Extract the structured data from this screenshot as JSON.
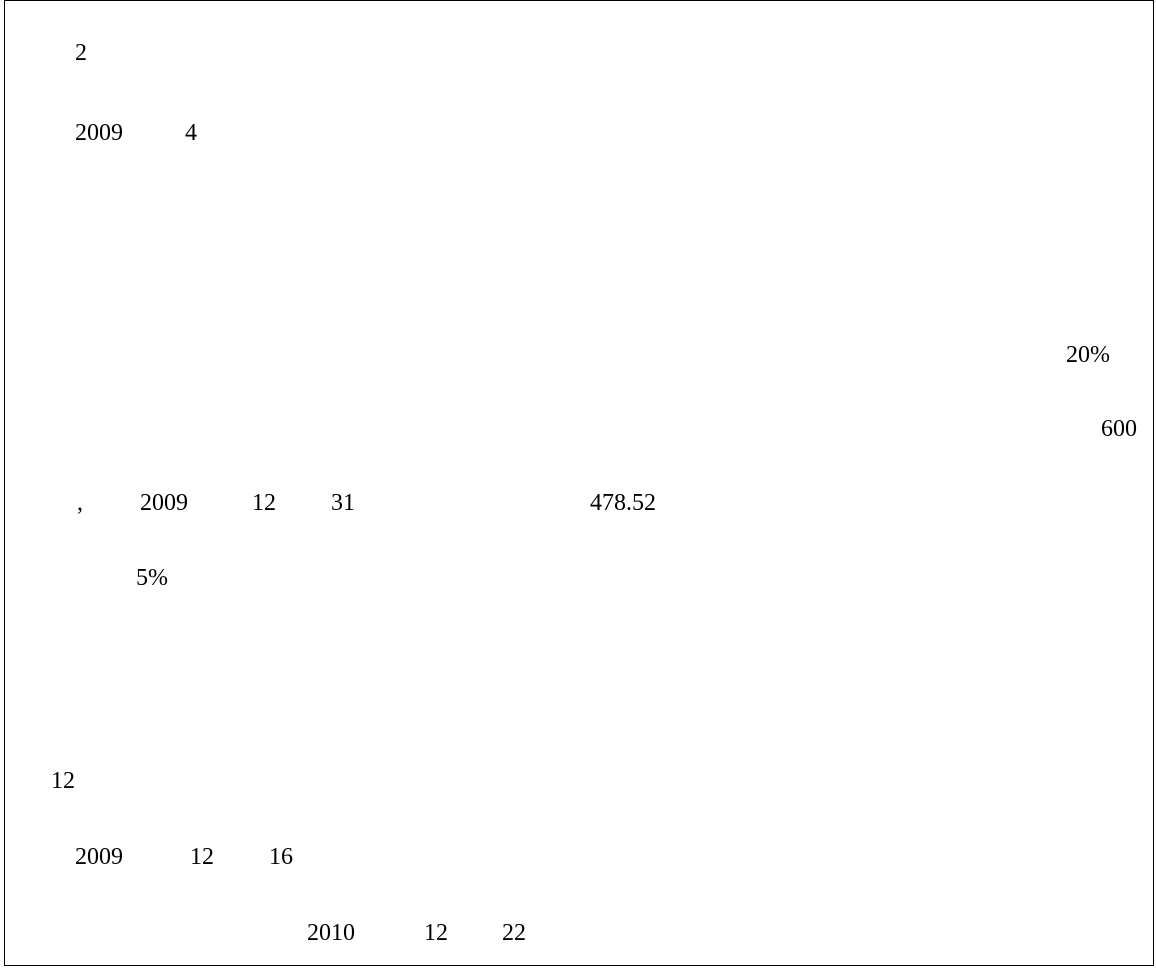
{
  "lines": {
    "l1": {
      "n1": "2"
    },
    "l2": {
      "n1": "2009",
      "n2": "4"
    },
    "l3": {
      "n1": "20%"
    },
    "l4": {
      "n1": "600"
    },
    "l5": {
      "comma": ",",
      "n1": "2009",
      "n2": "12",
      "n3": "31",
      "n4": "478.52"
    },
    "l6": {
      "n1": "5%"
    },
    "l7": {
      "n1": "12"
    },
    "l8": {
      "n1": "2009",
      "n2": "12",
      "n3": "16"
    },
    "l9": {
      "n1": "2010",
      "n2": "12",
      "n3": "22"
    }
  }
}
